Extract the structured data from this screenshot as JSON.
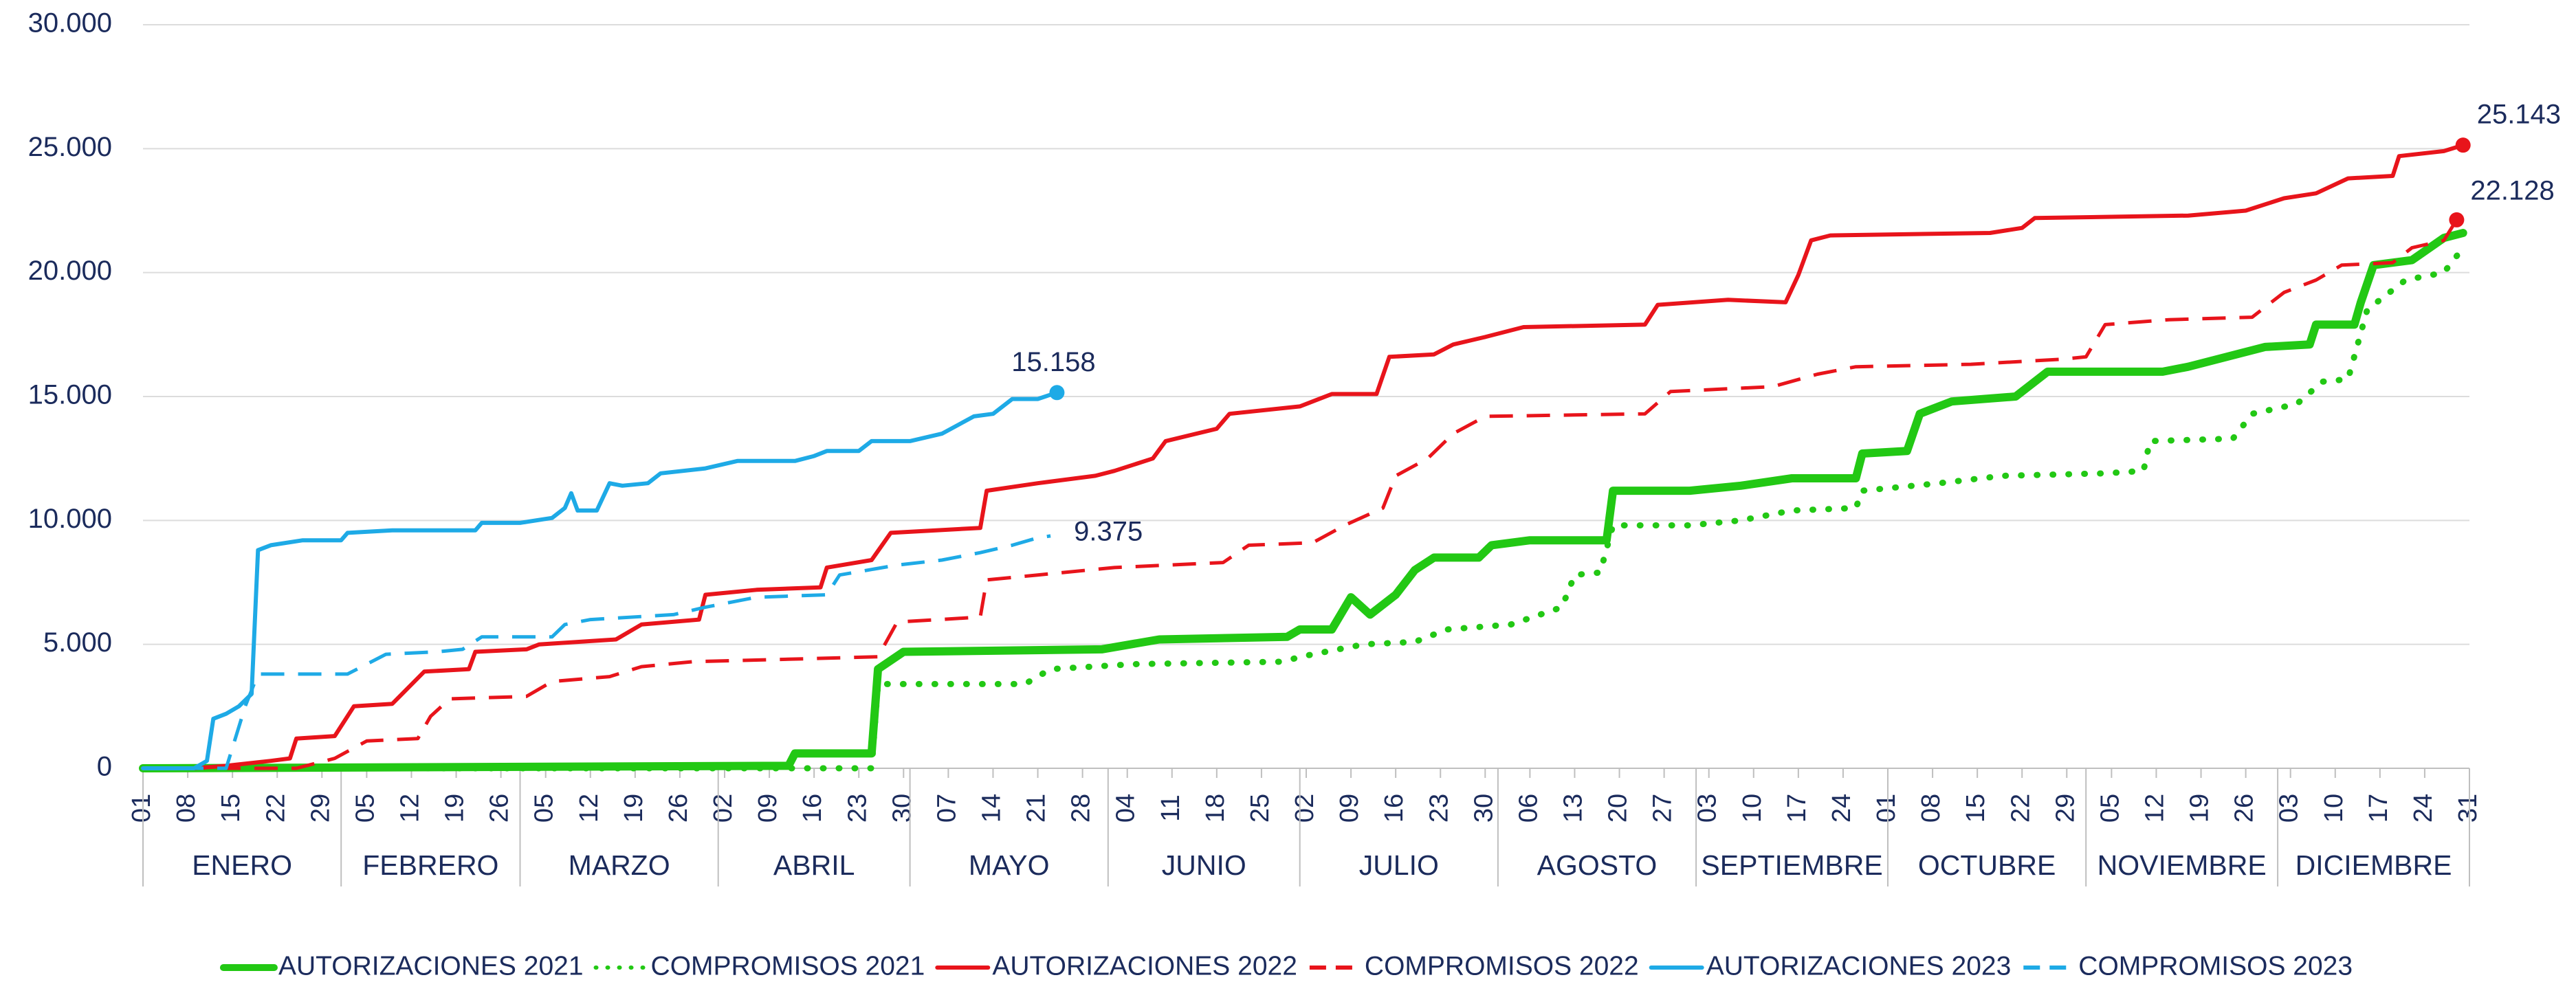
{
  "chart_data": {
    "type": "line",
    "xlim": [
      1,
      365
    ],
    "ylim": [
      0,
      30000
    ],
    "yticks": [
      0,
      {
        "value": 5000,
        "label": "5.000"
      },
      {
        "value": 10000,
        "label": "10.000"
      },
      {
        "value": 15000,
        "label": "15.000"
      },
      {
        "value": 20000,
        "label": "20.000"
      },
      {
        "value": 25000,
        "label": "25.000"
      },
      {
        "value": 30000,
        "label": "30.000"
      }
    ],
    "grid": true,
    "legend": "bottom",
    "xticks": [
      {
        "value": 1,
        "label": "01"
      },
      {
        "value": 8,
        "label": "08"
      },
      {
        "value": 15,
        "label": "15"
      },
      {
        "value": 22,
        "label": "22"
      },
      {
        "value": 29,
        "label": "29"
      },
      {
        "value": 36,
        "label": "05"
      },
      {
        "value": 43,
        "label": "12"
      },
      {
        "value": 50,
        "label": "19"
      },
      {
        "value": 57,
        "label": "26"
      },
      {
        "value": 64,
        "label": "05"
      },
      {
        "value": 71,
        "label": "12"
      },
      {
        "value": 78,
        "label": "19"
      },
      {
        "value": 85,
        "label": "26"
      },
      {
        "value": 92,
        "label": "02"
      },
      {
        "value": 99,
        "label": "09"
      },
      {
        "value": 106,
        "label": "16"
      },
      {
        "value": 113,
        "label": "23"
      },
      {
        "value": 120,
        "label": "30"
      },
      {
        "value": 127,
        "label": "07"
      },
      {
        "value": 134,
        "label": "14"
      },
      {
        "value": 141,
        "label": "21"
      },
      {
        "value": 148,
        "label": "28"
      },
      {
        "value": 155,
        "label": "04"
      },
      {
        "value": 162,
        "label": "11"
      },
      {
        "value": 169,
        "label": "18"
      },
      {
        "value": 176,
        "label": "25"
      },
      {
        "value": 183,
        "label": "02"
      },
      {
        "value": 190,
        "label": "09"
      },
      {
        "value": 197,
        "label": "16"
      },
      {
        "value": 204,
        "label": "23"
      },
      {
        "value": 211,
        "label": "30"
      },
      {
        "value": 218,
        "label": "06"
      },
      {
        "value": 225,
        "label": "13"
      },
      {
        "value": 232,
        "label": "20"
      },
      {
        "value": 239,
        "label": "27"
      },
      {
        "value": 246,
        "label": "03"
      },
      {
        "value": 253,
        "label": "10"
      },
      {
        "value": 260,
        "label": "17"
      },
      {
        "value": 267,
        "label": "24"
      },
      {
        "value": 274,
        "label": "01"
      },
      {
        "value": 281,
        "label": "08"
      },
      {
        "value": 288,
        "label": "15"
      },
      {
        "value": 295,
        "label": "22"
      },
      {
        "value": 302,
        "label": "29"
      },
      {
        "value": 309,
        "label": "05"
      },
      {
        "value": 316,
        "label": "12"
      },
      {
        "value": 323,
        "label": "19"
      },
      {
        "value": 330,
        "label": "26"
      },
      {
        "value": 337,
        "label": "03"
      },
      {
        "value": 344,
        "label": "10"
      },
      {
        "value": 351,
        "label": "17"
      },
      {
        "value": 358,
        "label": "24"
      },
      {
        "value": 365,
        "label": "31"
      }
    ],
    "months": [
      {
        "label": "ENERO",
        "start": 1
      },
      {
        "label": "FEBRERO",
        "start": 32
      },
      {
        "label": "MARZO",
        "start": 60
      },
      {
        "label": "ABRIL",
        "start": 91
      },
      {
        "label": "MAYO",
        "start": 121
      },
      {
        "label": "JUNIO",
        "start": 152
      },
      {
        "label": "JULIO",
        "start": 182
      },
      {
        "label": "AGOSTO",
        "start": 213
      },
      {
        "label": "SEPTIEMBRE",
        "start": 244
      },
      {
        "label": "OCTUBRE",
        "start": 274
      },
      {
        "label": "NOVIEMBRE",
        "start": 305
      },
      {
        "label": "DICIEMBRE",
        "start": 335
      }
    ],
    "series": [
      {
        "name": "AUTORIZACIONES 2021",
        "color": "#22c814",
        "line_style": "solid",
        "x": [
          1,
          102,
          103,
          115,
          116,
          120,
          151,
          160,
          180,
          182,
          187,
          190,
          193,
          197,
          200,
          203,
          210,
          212,
          218,
          230,
          231,
          243,
          251,
          259,
          269,
          270,
          277,
          279,
          284,
          294,
          299,
          317,
          321,
          327,
          333,
          340,
          341,
          347,
          348,
          350,
          356,
          361,
          364
        ],
        "values": [
          0,
          100,
          600,
          600,
          4000,
          4700,
          4800,
          5200,
          5300,
          5600,
          5600,
          6900,
          6200,
          7000,
          8000,
          8500,
          8500,
          9000,
          9200,
          9200,
          11200,
          11200,
          11400,
          11700,
          11700,
          12700,
          12800,
          14300,
          14800,
          15000,
          16000,
          16000,
          16200,
          16600,
          17000,
          17100,
          17900,
          17900,
          18800,
          20300,
          20500,
          21400,
          21600
        ]
      },
      {
        "name": "COMPROMISOS 2021",
        "color": "#22c814",
        "line_style": "dotted",
        "x": [
          1,
          115,
          116,
          139,
          143,
          156,
          179,
          184,
          192,
          200,
          205,
          215,
          223,
          225,
          229,
          231,
          243,
          251,
          259,
          269,
          270,
          282,
          292,
          308,
          314,
          315,
          328,
          331,
          338,
          342,
          346,
          349,
          355,
          361,
          364
        ],
        "values": [
          0,
          0,
          3400,
          3400,
          4000,
          4200,
          4300,
          4600,
          5000,
          5100,
          5600,
          5800,
          6500,
          7800,
          7900,
          9800,
          9800,
          10000,
          10400,
          10500,
          11200,
          11500,
          11800,
          11900,
          12000,
          13200,
          13300,
          14300,
          14700,
          15600,
          15700,
          18500,
          19700,
          20000,
          21000
        ]
      },
      {
        "name": "AUTORIZACIONES 2022",
        "color": "#e8141b",
        "line_style": "solid",
        "end_label": "25.143",
        "x": [
          1,
          9,
          14,
          21,
          24,
          25,
          31,
          34,
          40,
          45,
          52,
          53,
          61,
          63,
          75,
          79,
          88,
          89,
          97,
          107,
          108,
          115,
          118,
          132,
          133,
          141,
          150,
          153,
          159,
          161,
          169,
          171,
          182,
          187,
          194,
          196,
          203,
          206,
          211,
          217,
          236,
          238,
          249,
          258,
          260,
          262,
          265,
          290,
          295,
          297,
          321,
          330,
          336,
          341,
          346,
          353,
          354,
          361,
          364
        ],
        "values": [
          0,
          0,
          100,
          300,
          400,
          1200,
          1300,
          2500,
          2600,
          3900,
          4000,
          4700,
          4800,
          5000,
          5200,
          5800,
          6000,
          7000,
          7200,
          7300,
          8100,
          8400,
          9500,
          9700,
          11200,
          11500,
          11800,
          12000,
          12500,
          13200,
          13700,
          14300,
          14600,
          15100,
          15100,
          16600,
          16700,
          17100,
          17400,
          17800,
          17900,
          18700,
          18900,
          18800,
          19900,
          21300,
          21500,
          21600,
          21800,
          22200,
          22300,
          22500,
          23000,
          23200,
          23800,
          23900,
          24700,
          24900,
          25143
        ]
      },
      {
        "name": "COMPROMISOS 2022",
        "color": "#e8141b",
        "line_style": "dashed",
        "end_label": "22.128",
        "x": [
          1,
          25,
          31,
          36,
          44,
          46,
          49,
          61,
          65,
          74,
          79,
          87,
          102,
          116,
          119,
          132,
          133,
          141,
          153,
          170,
          174,
          184,
          189,
          195,
          197,
          202,
          206,
          211,
          236,
          240,
          256,
          263,
          269,
          287,
          301,
          305,
          308,
          318,
          331,
          336,
          341,
          345,
          353,
          356,
          361,
          363
        ],
        "values": [
          0,
          0,
          400,
          1100,
          1200,
          2100,
          2800,
          2900,
          3500,
          3700,
          4100,
          4300,
          4400,
          4500,
          5900,
          6100,
          7600,
          7800,
          8100,
          8300,
          9000,
          9100,
          9800,
          10500,
          11800,
          12500,
          13500,
          14200,
          14300,
          15200,
          15400,
          15900,
          16200,
          16300,
          16500,
          16600,
          17900,
          18100,
          18200,
          19200,
          19700,
          20300,
          20400,
          21000,
          21300,
          22128
        ]
      },
      {
        "name": "AUTORIZACIONES 2023",
        "color": "#1eaae6",
        "line_style": "solid",
        "end_label": "15.158",
        "x": [
          1,
          9,
          11,
          12,
          14,
          16,
          18,
          19,
          21,
          26,
          32,
          33,
          40,
          53,
          54,
          60,
          65,
          67,
          68,
          69,
          72,
          74,
          76,
          80,
          82,
          89,
          94,
          103,
          106,
          108,
          113,
          115,
          121,
          126,
          131,
          134,
          137,
          141,
          144
        ],
        "values": [
          0,
          0,
          300,
          2000,
          2200,
          2500,
          3000,
          8800,
          9000,
          9200,
          9200,
          9500,
          9600,
          9600,
          9900,
          9900,
          10100,
          10500,
          11100,
          10400,
          10400,
          11500,
          11400,
          11500,
          11900,
          12100,
          12400,
          12400,
          12600,
          12800,
          12800,
          13200,
          13200,
          13500,
          14200,
          14300,
          14900,
          14900,
          15158
        ]
      },
      {
        "name": "COMPROMISOS 2023",
        "color": "#1eaae6",
        "line_style": "dashed",
        "end_label": "9.375",
        "x": [
          1,
          14,
          17,
          19,
          33,
          39,
          47,
          51,
          54,
          65,
          67,
          71,
          84,
          89,
          97,
          108,
          110,
          119,
          126,
          132,
          137,
          141,
          143
        ],
        "values": [
          0,
          0,
          2500,
          3800,
          3800,
          4600,
          4700,
          4800,
          5300,
          5300,
          5800,
          6000,
          6200,
          6500,
          6900,
          7000,
          7800,
          8200,
          8400,
          8700,
          9000,
          9300,
          9375
        ]
      }
    ]
  }
}
